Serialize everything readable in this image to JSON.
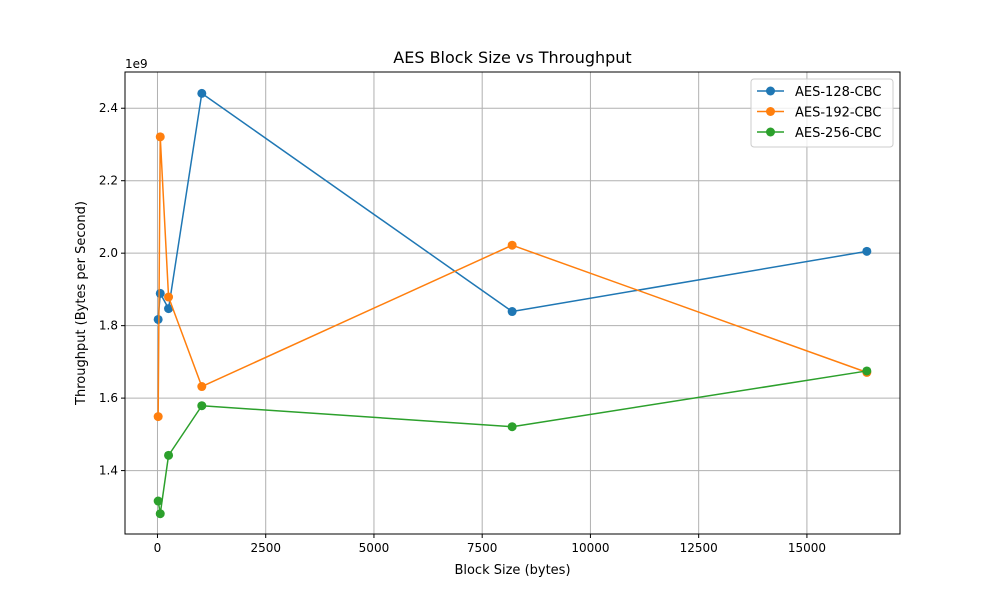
{
  "chart_data": {
    "type": "line",
    "title": "AES Block Size vs Throughput",
    "xlabel": "Block Size (bytes)",
    "ylabel": "Throughput (Bytes per Second)",
    "y_offset_label": "1e9",
    "y_scale_factor": 1000000000,
    "xlim": [
      -750,
      17150
    ],
    "ylim": [
      1.225,
      2.5
    ],
    "x_ticks": [
      0,
      2500,
      5000,
      7500,
      10000,
      12500,
      15000
    ],
    "x_tick_labels": [
      "0",
      "2500",
      "5000",
      "7500",
      "10000",
      "12500",
      "15000"
    ],
    "y_ticks": [
      1.4,
      1.6,
      1.8,
      2.0,
      2.2,
      2.4
    ],
    "y_tick_labels": [
      "1.4",
      "1.6",
      "1.8",
      "2.0",
      "2.2",
      "2.4"
    ],
    "grid": true,
    "legend_position": "top-right",
    "x": [
      16,
      64,
      256,
      1024,
      8192,
      16384
    ],
    "series": [
      {
        "name": "AES-128-CBC",
        "color": "#1f77b4",
        "values": [
          1.817,
          1.889,
          1.847,
          2.441,
          1.839,
          2.005
        ]
      },
      {
        "name": "AES-192-CBC",
        "color": "#ff7f0e",
        "values": [
          1.549,
          2.321,
          1.879,
          1.632,
          2.022,
          1.671
        ]
      },
      {
        "name": "AES-256-CBC",
        "color": "#2ca02c",
        "values": [
          1.316,
          1.281,
          1.442,
          1.579,
          1.521,
          1.675
        ]
      }
    ]
  }
}
